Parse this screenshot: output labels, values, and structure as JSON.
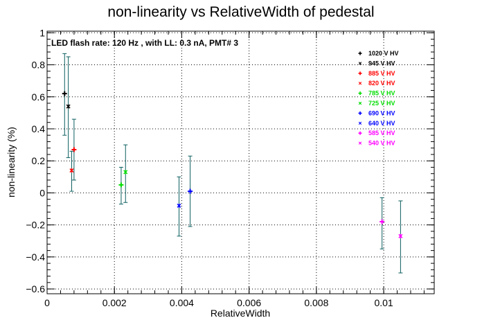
{
  "chart_data": {
    "type": "scatter",
    "title": "non-linearity vs RelativeWidth of pedestal",
    "xlabel": "RelativeWidth",
    "ylabel": "non-linearity (%)",
    "annotation": "LED flash rate: 120 Hz , with LL: 0.3 nA, PMT# 3",
    "xlim": [
      0,
      0.0115
    ],
    "ylim": [
      -0.63,
      1.01
    ],
    "x_ticks": [
      0,
      0.002,
      0.004,
      0.006,
      0.008,
      0.01
    ],
    "x_tick_labels": [
      "0",
      "0.002",
      "0.004",
      "0.006",
      "0.008",
      "0.01"
    ],
    "y_ticks": [
      -0.6,
      -0.4,
      -0.2,
      0,
      0.2,
      0.4,
      0.6,
      0.8,
      1
    ],
    "y_tick_labels": [
      "−0.6",
      "−0.4",
      "−0.2",
      "0",
      "0.2",
      "0.4",
      "0.6",
      "0.8",
      "1"
    ],
    "grid": true,
    "legend_position": "top-right",
    "error_bar_color": "#0c5e5e",
    "series": [
      {
        "name": "1020 V HV",
        "color": "#000000",
        "marker": "+",
        "x": 0.00052,
        "y": 0.62,
        "yerr_low": 0.36,
        "yerr_high": 0.87
      },
      {
        "name": "945 V HV",
        "color": "#000000",
        "marker": "*",
        "x": 0.00063,
        "y": 0.54,
        "yerr_low": 0.22,
        "yerr_high": 0.85
      },
      {
        "name": "885 V HV",
        "color": "#ff0000",
        "marker": "+",
        "x": 0.0008,
        "y": 0.27,
        "yerr_low": 0.08,
        "yerr_high": 0.46
      },
      {
        "name": "820 V HV",
        "color": "#ff0000",
        "marker": "*",
        "x": 0.00073,
        "y": 0.14,
        "yerr_low": 0.01,
        "yerr_high": 0.26
      },
      {
        "name": "785 V HV",
        "color": "#00dd00",
        "marker": "+",
        "x": 0.0022,
        "y": 0.05,
        "yerr_low": -0.07,
        "yerr_high": 0.16
      },
      {
        "name": "725 V HV",
        "color": "#00dd00",
        "marker": "*",
        "x": 0.00233,
        "y": 0.13,
        "yerr_low": -0.06,
        "yerr_high": 0.3
      },
      {
        "name": "690 V HV",
        "color": "#0000ff",
        "marker": "+",
        "x": 0.00425,
        "y": 0.01,
        "yerr_low": -0.21,
        "yerr_high": 0.23
      },
      {
        "name": "640 V HV",
        "color": "#0000ff",
        "marker": "*",
        "x": 0.00392,
        "y": -0.08,
        "yerr_low": -0.27,
        "yerr_high": 0.1
      },
      {
        "name": "585 V HV",
        "color": "#ff00ff",
        "marker": "+",
        "x": 0.00995,
        "y": -0.18,
        "yerr_low": -0.35,
        "yerr_high": -0.03
      },
      {
        "name": "540 V HV",
        "color": "#ff00ff",
        "marker": "*",
        "x": 0.0105,
        "y": -0.27,
        "yerr_low": -0.5,
        "yerr_high": -0.05
      }
    ]
  }
}
